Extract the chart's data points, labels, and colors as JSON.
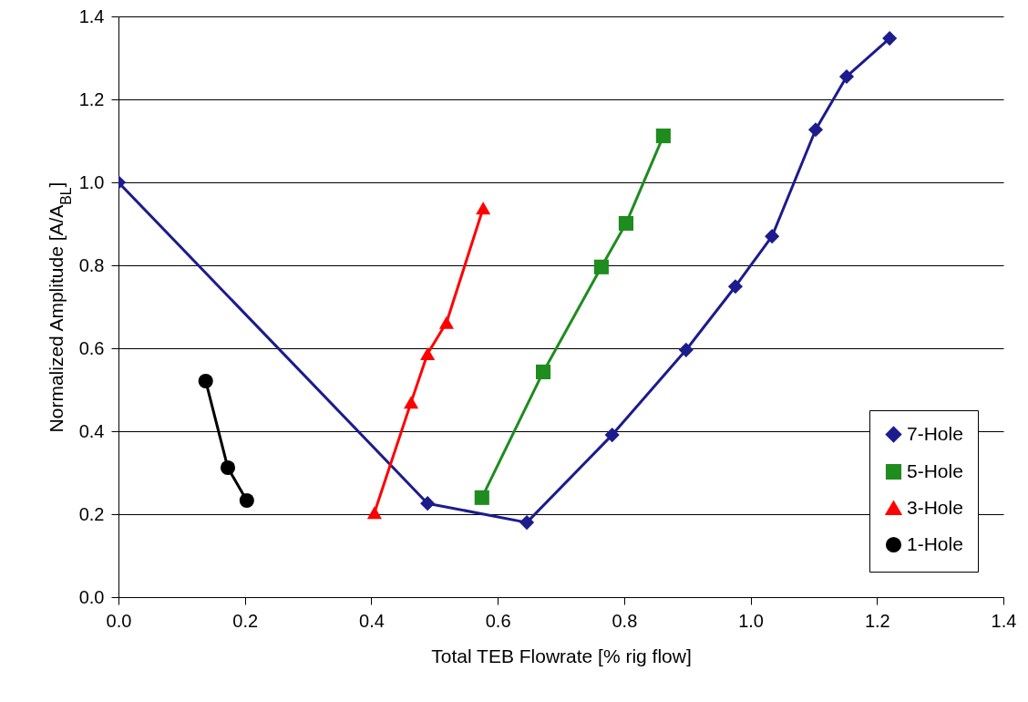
{
  "chart_data": {
    "type": "line",
    "xlabel": "Total TEB Flowrate [% rig flow]",
    "ylabel": "Normalized Amplitude [A/A$_{BL}$]",
    "xlim": [
      0,
      1.4
    ],
    "xticks": [
      {
        "value": 0,
        "label": "0.0"
      },
      0.2,
      0.4,
      0.6,
      0.8,
      {
        "value": 1,
        "label": "1.0"
      },
      1.2,
      1.4
    ],
    "ylim": [
      0,
      1.4
    ],
    "yticks": [
      {
        "value": 0,
        "label": "0.0"
      },
      0.2,
      0.4,
      0.6,
      0.8,
      {
        "value": 1,
        "label": "1.0"
      },
      1.2,
      1.4
    ],
    "grid": "y",
    "legend": "bottom right",
    "series": [
      {
        "name": "7-Hole",
        "color": "#1c1c8c",
        "marker": "diamond",
        "x": [
          0,
          0.489,
          0.646,
          0.781,
          0.898,
          0.976,
          1.034,
          1.103,
          1.152,
          1.22
        ],
        "values": [
          1.0,
          0.226,
          0.18,
          0.391,
          0.596,
          0.749,
          0.87,
          1.127,
          1.255,
          1.347
        ]
      },
      {
        "name": "5-Hole",
        "color": "#1f8c1f",
        "marker": "square",
        "x": [
          0.575,
          0.672,
          0.764,
          0.803,
          0.862
        ],
        "values": [
          0.24,
          0.543,
          0.796,
          0.901,
          1.112
        ]
      },
      {
        "name": "3-Hole",
        "color": "#ff0000",
        "marker": "triangle",
        "x": [
          0.405,
          0.463,
          0.489,
          0.519,
          0.577
        ],
        "values": [
          0.204,
          0.47,
          0.587,
          0.662,
          0.938
        ]
      },
      {
        "name": "1-Hole",
        "color": "#000000",
        "marker": "circle",
        "x": [
          0.138,
          0.173,
          0.203
        ],
        "values": [
          0.521,
          0.312,
          0.233
        ]
      }
    ]
  }
}
